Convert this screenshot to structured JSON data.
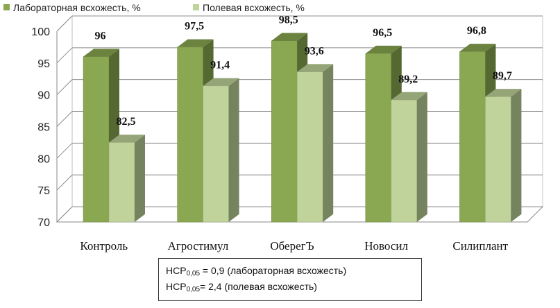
{
  "chart_data": {
    "type": "bar",
    "categories": [
      "Контроль",
      "Агростимул",
      "ОберегЪ",
      "Новосил",
      "Силиплант"
    ],
    "series": [
      {
        "name": "Лабораторная всхожесть, %",
        "values": [
          96,
          97.5,
          98.5,
          96.5,
          96.8
        ],
        "labels": [
          "96",
          "97,5",
          "98,5",
          "96,5",
          "96,8"
        ],
        "color": "#8aa851"
      },
      {
        "name": "Полевая всхожесть, %",
        "values": [
          82.5,
          91.4,
          93.6,
          89.2,
          89.7
        ],
        "labels": [
          "82,5",
          "91,4",
          "93,6",
          "89,2",
          "89,7"
        ],
        "color": "#bfd39a"
      }
    ],
    "ylim": [
      70,
      100
    ],
    "yticks": [
      "70",
      "75",
      "80",
      "85",
      "90",
      "95",
      "100"
    ],
    "grid": true,
    "legend_position": "top-left",
    "style": "3d-column"
  },
  "note": {
    "line1": {
      "prefix": "НСР",
      "sub": "0,05",
      "text": " = 0,9 (лабораторная всхожесть)"
    },
    "line2": {
      "prefix": "НСР",
      "sub": "0,05",
      "text": "= 2,4 (полевая всхожесть)"
    }
  }
}
